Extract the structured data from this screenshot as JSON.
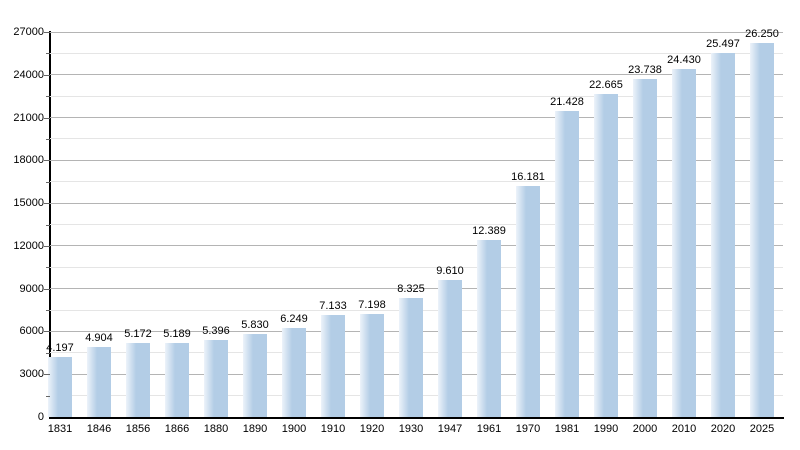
{
  "chart_data": {
    "type": "bar",
    "title": "",
    "xlabel": "",
    "ylabel": "",
    "categories": [
      "1831",
      "1846",
      "1856",
      "1866",
      "1880",
      "1890",
      "1900",
      "1910",
      "1920",
      "1930",
      "1947",
      "1961",
      "1970",
      "1981",
      "1990",
      "2000",
      "2010",
      "2020",
      "2025"
    ],
    "values": [
      4197,
      4904,
      5172,
      5189,
      5396,
      5830,
      6249,
      7133,
      7198,
      8325,
      9610,
      12389,
      16181,
      21428,
      22665,
      23738,
      24430,
      25497,
      26250
    ],
    "value_labels": [
      "4.197",
      "4.904",
      "5.172",
      "5.189",
      "5.396",
      "5.830",
      "6.249",
      "7.133",
      "7.198",
      "8.325",
      "9.610",
      "12.389",
      "16.181",
      "21.428",
      "22.665",
      "23.738",
      "24.430",
      "25.497",
      "26.250"
    ],
    "ylim": [
      0,
      27000
    ],
    "yticks": [
      0,
      3000,
      6000,
      9000,
      12000,
      15000,
      18000,
      21000,
      24000,
      27000
    ],
    "ytick_step": 3000,
    "minor_ytick_step": 1500,
    "grid": true,
    "legend": "none",
    "colors": {
      "bar_fill": "#b3cde6",
      "bar_gradient_start": "#edf3fa",
      "major_gridline": "#b4b4b4",
      "minor_gridline": "#e5e5e5",
      "axis": "#000000",
      "text": "#000000",
      "background": "#ffffff"
    }
  }
}
